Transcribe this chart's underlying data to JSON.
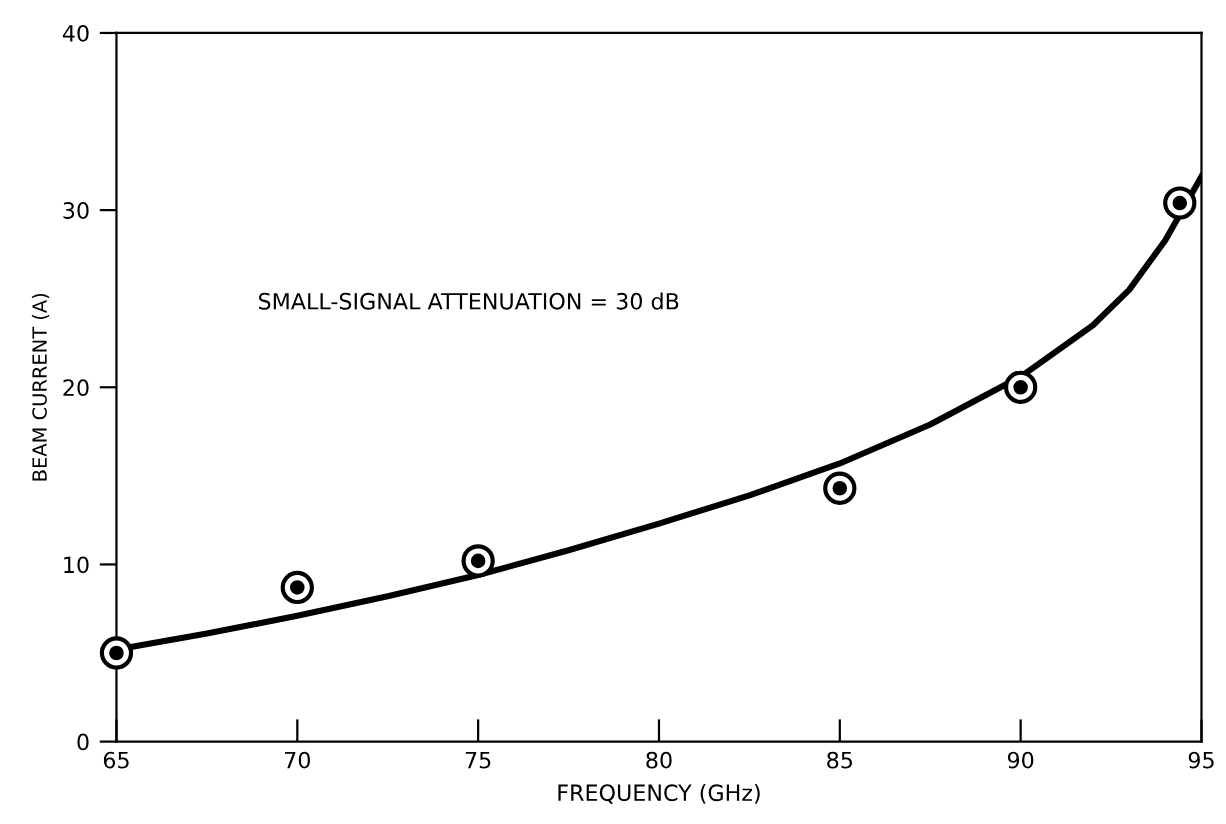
{
  "chart_data": {
    "type": "scatter",
    "xlabel": "FREQUENCY (GHz)",
    "ylabel": "BEAM CURRENT (A)",
    "annotations": [
      "SMALL-SIGNAL ATTENUATION = 30 dB"
    ],
    "xlim": [
      65,
      95
    ],
    "ylim": [
      0,
      40
    ],
    "xticks": [
      65,
      70,
      75,
      80,
      85,
      90,
      95
    ],
    "yticks": [
      0,
      10,
      20,
      30,
      40
    ],
    "grid": false,
    "legend": false,
    "series": [
      {
        "color": "#000000",
        "marker": "circle",
        "x": [
          65,
          70,
          75,
          85,
          90,
          94.4
        ],
        "values": [
          5.0,
          8.7,
          10.2,
          14.3,
          20.0,
          30.4
        ]
      },
      {
        "type": "line",
        "color": "#000000",
        "marker": "none",
        "line_style": "solid",
        "x": [
          65,
          67.5,
          70,
          72.5,
          75,
          77.5,
          80,
          82.5,
          85,
          87.5,
          90,
          92,
          93,
          94,
          95
        ],
        "values": [
          5.2,
          6.1,
          7.1,
          8.2,
          9.4,
          10.8,
          12.3,
          13.9,
          15.7,
          17.9,
          20.6,
          23.5,
          25.5,
          28.3,
          31.9
        ]
      }
    ]
  }
}
